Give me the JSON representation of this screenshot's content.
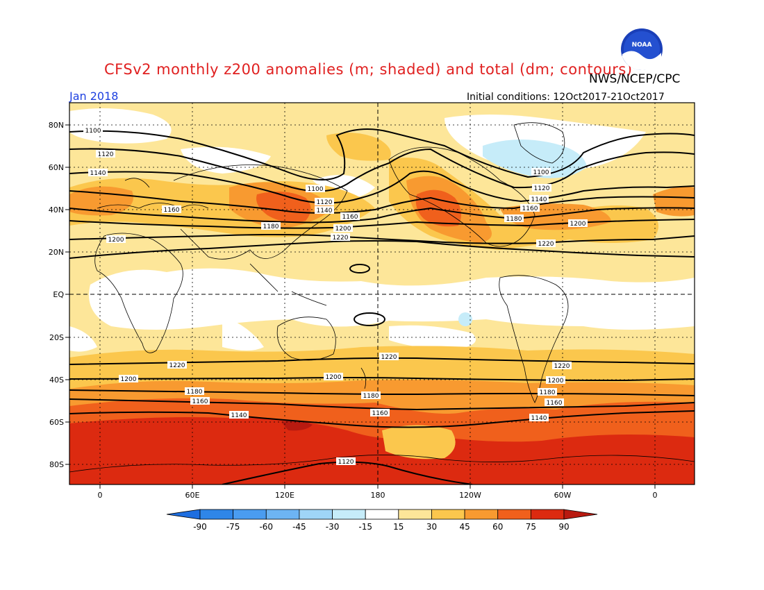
{
  "title": "CFSv2 monthly z200 anomalies (m; shaded) and total (dm; contours)",
  "agency": "NWS/NCEP/CPC",
  "valid_month": "Jan 2018",
  "initial_conditions": "Initial conditions: 12Oct2017-21Oct2017",
  "logo_text": "NOAA",
  "map": {
    "lat_labels": [
      "80N",
      "60N",
      "40N",
      "20N",
      "EQ",
      "20S",
      "40S",
      "60S",
      "80S"
    ],
    "lon_labels": [
      "0",
      "60E",
      "120E",
      "180",
      "120W",
      "60W",
      "0"
    ],
    "contour_labels": [
      "1100",
      "1120",
      "1140",
      "1160",
      "1180",
      "1200",
      "1220"
    ]
  },
  "colorbar": {
    "labels": [
      "-90",
      "-75",
      "-60",
      "-45",
      "-30",
      "-15",
      "15",
      "30",
      "45",
      "60",
      "75",
      "90"
    ],
    "colors": [
      "#1e6ee0",
      "#2f86e8",
      "#4a9cf0",
      "#6db4f3",
      "#9fd5f7",
      "#c6ecf9",
      "#ffffff",
      "#fde699",
      "#fbc74d",
      "#f89a30",
      "#f0601c",
      "#dc2a10",
      "#b81a10"
    ]
  }
}
